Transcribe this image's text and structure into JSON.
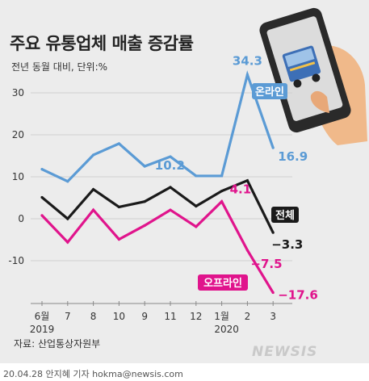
{
  "title": "주요 유통업체 매출 증감률",
  "subtitle": "전년 동월 대비, 단위:%",
  "source": "자료: 산업통상자원부",
  "credit": "20.04.28 안지혜 기자 hokma@newsis.com",
  "watermark": "NEWSIS",
  "phone_icon": "smartphone-delivery-truck-icon",
  "colors": {
    "online": "#5b9bd5",
    "total": "#1a1a1a",
    "offline": "#e0148c",
    "background": "#ececec",
    "grid": "#d0d0d0"
  },
  "chart_data": {
    "type": "line",
    "title": "주요 유통업체 매출 증감률",
    "subtitle": "전년 동월 대비, 단위:%",
    "categories": [
      "6월",
      "7",
      "8",
      "10",
      "9",
      "11",
      "12",
      "1월",
      "2",
      "3"
    ],
    "year_labels": [
      "2019",
      "2020"
    ],
    "ylim": [
      -15,
      35
    ],
    "yticks": [
      30,
      20,
      10,
      0,
      -10
    ],
    "grid": true,
    "series": [
      {
        "name": "온라인",
        "color": "#5b9bd5",
        "values": [
          11.8,
          8.9,
          15.2,
          17.9,
          12.5,
          14.8,
          10.2,
          10.2,
          34.3,
          16.9
        ],
        "labels": [
          null,
          null,
          null,
          null,
          null,
          null,
          "10.2",
          null,
          "34.3",
          "16.9"
        ]
      },
      {
        "name": "전체",
        "color": "#1a1a1a",
        "values": [
          5.1,
          0.0,
          7.0,
          2.8,
          4.1,
          7.5,
          3.0,
          6.6,
          9.1,
          -3.3
        ],
        "labels": [
          null,
          null,
          null,
          null,
          null,
          null,
          null,
          null,
          null,
          "−3.3"
        ]
      },
      {
        "name": "오프라인",
        "color": "#e0148c",
        "values": [
          0.8,
          -5.6,
          2.1,
          -4.9,
          -1.6,
          2.1,
          -1.9,
          4.1,
          -7.5,
          -17.6
        ],
        "labels": [
          null,
          null,
          null,
          null,
          null,
          null,
          null,
          "4.1",
          "−7.5",
          "−17.6"
        ]
      }
    ]
  }
}
